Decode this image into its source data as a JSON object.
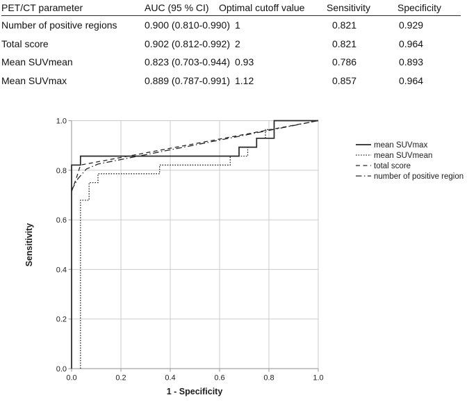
{
  "colors": {
    "background": "#ffffff",
    "text": "#111111",
    "curve": "#262626",
    "grid": "#cbcbcb",
    "axis": "#a3a3a3",
    "header_rule": "#2a2a2a"
  },
  "table": {
    "headers": [
      "PET/CT parameter",
      "AUC (95 % CI)",
      "Optimal cutoff value",
      "Sensitivity",
      "Specificity"
    ],
    "rows": [
      [
        "Number of positive regions",
        "0.900 (0.810-0.990)",
        "1",
        "0.821",
        "0.929"
      ],
      [
        "Total score",
        "0.902 (0.812-0.992)",
        "2",
        "0.821",
        "0.964"
      ],
      [
        "Mean SUVmean",
        "0.823 (0.703-0.944)",
        "0.93",
        "0.786",
        "0.893"
      ],
      [
        "Mean SUVmax",
        "0.889 (0.787-0.991)",
        "1.12",
        "0.857",
        "0.964"
      ]
    ]
  },
  "chart_data": {
    "type": "line",
    "subtype": "roc-curves",
    "title": "",
    "xlabel": "1 - Specificity",
    "ylabel": "Sensitivity",
    "xlim": [
      0.0,
      1.0
    ],
    "ylim": [
      0.0,
      1.0
    ],
    "xticks": [
      0.0,
      0.2,
      0.4,
      0.6,
      0.8,
      1.0
    ],
    "yticks": [
      0.0,
      0.2,
      0.4,
      0.6,
      0.8,
      1.0
    ],
    "grid": true,
    "legend_position": "right",
    "series": [
      {
        "name": "mean SUVmax",
        "line_style": "solid",
        "points": [
          [
            0,
            0
          ],
          [
            0,
            0.821
          ],
          [
            0.036,
            0.821
          ],
          [
            0.036,
            0.857
          ],
          [
            0.679,
            0.857
          ],
          [
            0.679,
            0.893
          ],
          [
            0.75,
            0.893
          ],
          [
            0.75,
            0.929
          ],
          [
            0.821,
            0.929
          ],
          [
            0.821,
            1.0
          ],
          [
            1.0,
            1.0
          ]
        ]
      },
      {
        "name": "mean SUVmean",
        "line_style": "dotted",
        "points": [
          [
            0.036,
            0
          ],
          [
            0.036,
            0.679
          ],
          [
            0.071,
            0.679
          ],
          [
            0.071,
            0.75
          ],
          [
            0.107,
            0.75
          ],
          [
            0.107,
            0.786
          ],
          [
            0.357,
            0.786
          ],
          [
            0.357,
            0.821
          ],
          [
            0.643,
            0.821
          ],
          [
            0.643,
            0.857
          ],
          [
            0.714,
            0.857
          ],
          [
            0.714,
            0.893
          ],
          [
            0.75,
            0.893
          ],
          [
            0.75,
            0.929
          ],
          [
            0.786,
            0.929
          ],
          [
            0.786,
            0.964
          ],
          [
            0.821,
            0.964
          ],
          [
            0.821,
            1.0
          ],
          [
            1.0,
            1.0
          ]
        ]
      },
      {
        "name": "total score",
        "line_style": "dashed",
        "points": [
          [
            0,
            0.714
          ],
          [
            0.02,
            0.77
          ],
          [
            0.036,
            0.821
          ],
          [
            1.0,
            1.0
          ]
        ]
      },
      {
        "name": "number of positive region",
        "line_style": "dashdot",
        "points": [
          [
            0,
            0.72
          ],
          [
            0.025,
            0.765
          ],
          [
            0.06,
            0.805
          ],
          [
            0.107,
            0.825
          ],
          [
            1.0,
            1.0
          ]
        ]
      }
    ]
  }
}
